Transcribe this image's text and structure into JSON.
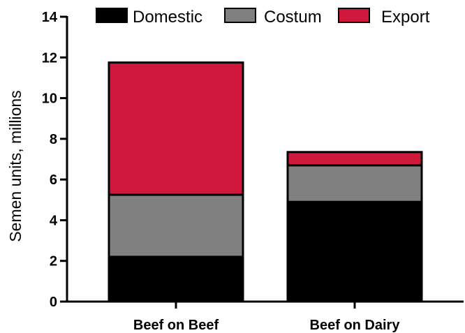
{
  "chart_data": {
    "type": "bar",
    "stacked": true,
    "categories": [
      "Beef on Beef",
      "Beef on Dairy"
    ],
    "series": [
      {
        "name": "Domestic",
        "color": "#000000",
        "values": [
          2.2,
          4.9
        ]
      },
      {
        "name": "Costum",
        "color": "#808080",
        "values": [
          3.05,
          1.8
        ]
      },
      {
        "name": "Export",
        "color": "#d0183c",
        "values": [
          6.5,
          0.65
        ]
      }
    ],
    "ylabel": "Semen units, millions",
    "xlabel": "",
    "ylim": [
      0,
      14
    ],
    "yticks": [
      0,
      2,
      4,
      6,
      8,
      10,
      12,
      14
    ],
    "grid": false,
    "legend_position": "top"
  }
}
